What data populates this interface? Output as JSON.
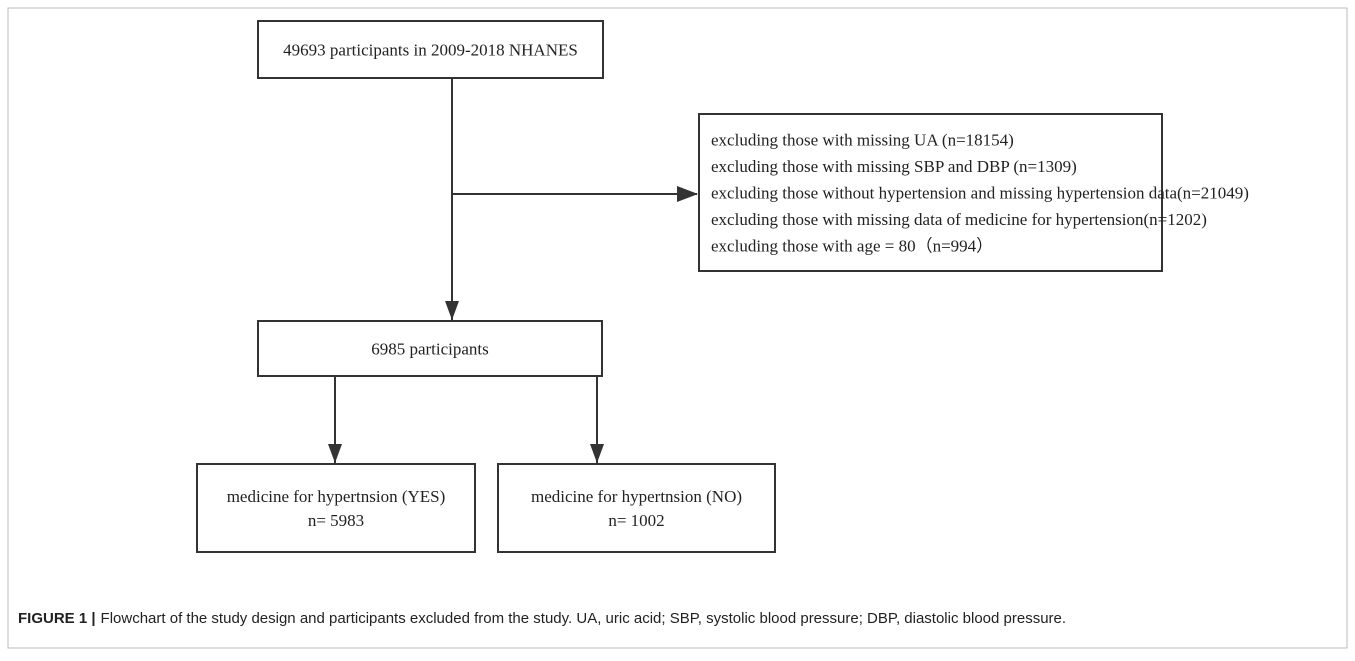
{
  "nodes": [
    {
      "lines": [
        "49693 participants in 2009-2018 NHANES"
      ]
    },
    {
      "lines": [
        "excluding those with missing UA (n=18154)",
        "excluding those with missing SBP and DBP (n=1309)",
        "excluding those without hypertension and missing hypertension data(n=21049)",
        "excluding those with missing data of medicine for hypertension(n=1202)",
        "excluding those with age = 80（n=994）"
      ]
    },
    {
      "lines": [
        "6985 participants"
      ]
    },
    {
      "lines": [
        "medicine for hypertnsion (YES)",
        "n= 5983"
      ]
    },
    {
      "lines": [
        "medicine for hypertnsion (NO)",
        "n= 1002"
      ]
    }
  ],
  "caption": {
    "label": "FIGURE 1 |",
    "text": "Flowchart of the study design and participants excluded from the study. UA, uric acid; SBP, systolic blood pressure; DBP, diastolic blood pressure."
  }
}
